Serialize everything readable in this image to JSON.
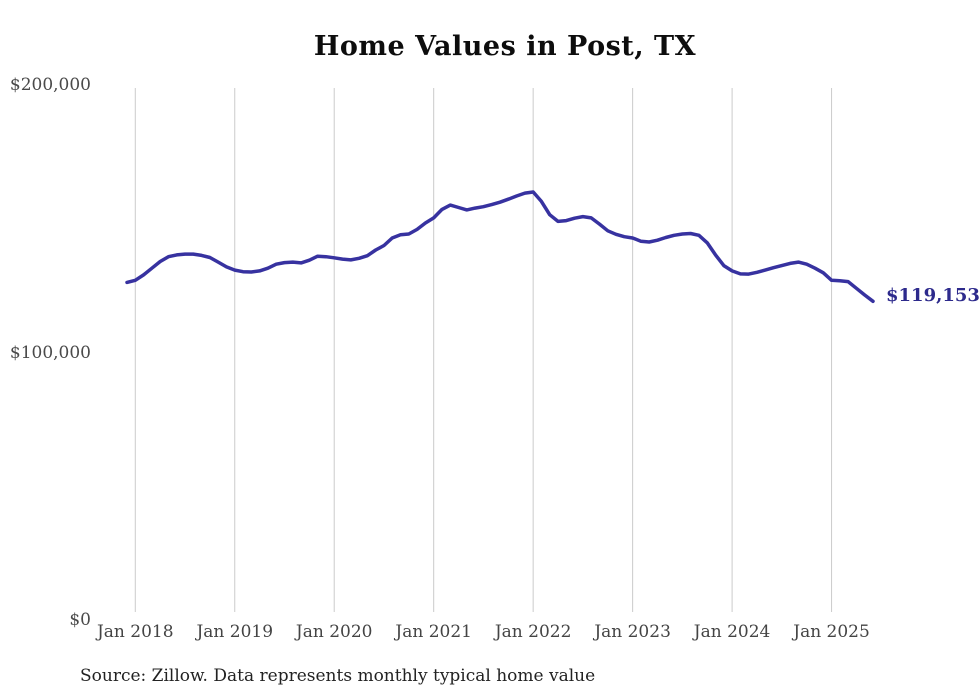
{
  "page": {
    "background": "#ffffff"
  },
  "chart_data": {
    "type": "line",
    "title": "Home Values in Post, TX",
    "source_note": "Source: Zillow. Data represents monthly typical home value",
    "end_label": "$119,153",
    "end_value": 119153,
    "legend": "none",
    "grid": "vertical-year-gridlines",
    "ylim": [
      0,
      200000
    ],
    "line_color": "#3732A0",
    "label_color": "#2D2A8C",
    "grid_color": "#CBCBCB",
    "y_ticks": [
      {
        "label": "$200,000",
        "value": 200000
      },
      {
        "label": "$100,000",
        "value": 100000
      },
      {
        "label": "$0",
        "value": 0
      }
    ],
    "x_gridline_months": [
      "Jan 2018",
      "Jan 2019",
      "Jan 2020",
      "Jan 2021",
      "Jan 2022",
      "Jan 2023",
      "Jan 2024",
      "Jan 2025"
    ],
    "x": [
      "Dec 2017",
      "Jan 2018",
      "Feb 2018",
      "Mar 2018",
      "Apr 2018",
      "May 2018",
      "Jun 2018",
      "Jul 2018",
      "Aug 2018",
      "Sep 2018",
      "Oct 2018",
      "Nov 2018",
      "Dec 2018",
      "Jan 2019",
      "Feb 2019",
      "Mar 2019",
      "Apr 2019",
      "May 2019",
      "Jun 2019",
      "Jul 2019",
      "Aug 2019",
      "Sep 2019",
      "Oct 2019",
      "Nov 2019",
      "Dec 2019",
      "Jan 2020",
      "Feb 2020",
      "Mar 2020",
      "Apr 2020",
      "May 2020",
      "Jun 2020",
      "Jul 2020",
      "Aug 2020",
      "Sep 2020",
      "Oct 2020",
      "Nov 2020",
      "Dec 2020",
      "Jan 2021",
      "Feb 2021",
      "Mar 2021",
      "Apr 2021",
      "May 2021",
      "Jun 2021",
      "Jul 2021",
      "Aug 2021",
      "Sep 2021",
      "Oct 2021",
      "Nov 2021",
      "Dec 2021",
      "Jan 2022",
      "Feb 2022",
      "Mar 2022",
      "Apr 2022",
      "May 2022",
      "Jun 2022",
      "Jul 2022",
      "Aug 2022",
      "Sep 2022",
      "Oct 2022",
      "Nov 2022",
      "Dec 2022",
      "Jan 2023",
      "Feb 2023",
      "Mar 2023",
      "Apr 2023",
      "May 2023",
      "Jun 2023",
      "Jul 2023",
      "Aug 2023",
      "Sep 2023",
      "Oct 2023",
      "Nov 2023",
      "Dec 2023",
      "Jan 2024",
      "Feb 2024",
      "Mar 2024",
      "Apr 2024",
      "May 2024",
      "Jun 2024",
      "Jul 2024",
      "Aug 2024",
      "Sep 2024",
      "Oct 2024",
      "Nov 2024",
      "Dec 2024",
      "Jan 2025",
      "Feb 2025",
      "Mar 2025",
      "Apr 2025",
      "May 2025",
      "Jun 2025"
    ],
    "series": [
      {
        "name": "Typical home value",
        "values": [
          126200,
          127000,
          129000,
          131500,
          134000,
          135800,
          136500,
          136800,
          136800,
          136300,
          135500,
          133800,
          132000,
          130800,
          130200,
          130100,
          130500,
          131500,
          133000,
          133600,
          133800,
          133500,
          134500,
          136000,
          135800,
          135400,
          134900,
          134600,
          135200,
          136200,
          138300,
          140000,
          142800,
          144000,
          144300,
          146000,
          148400,
          150300,
          153500,
          155100,
          154200,
          153300,
          154000,
          154500,
          155300,
          156200,
          157300,
          158500,
          159600,
          160000,
          156500,
          151500,
          149000,
          149300,
          150200,
          150800,
          150300,
          148000,
          145500,
          144200,
          143300,
          142800,
          141600,
          141300,
          142000,
          143000,
          143800,
          144300,
          144500,
          143800,
          141000,
          136500,
          132500,
          130500,
          129400,
          129300,
          130000,
          130800,
          131700,
          132500,
          133300,
          133800,
          133000,
          131500,
          129800,
          127000,
          126800,
          126500,
          124000,
          121500,
          119153
        ]
      }
    ]
  }
}
